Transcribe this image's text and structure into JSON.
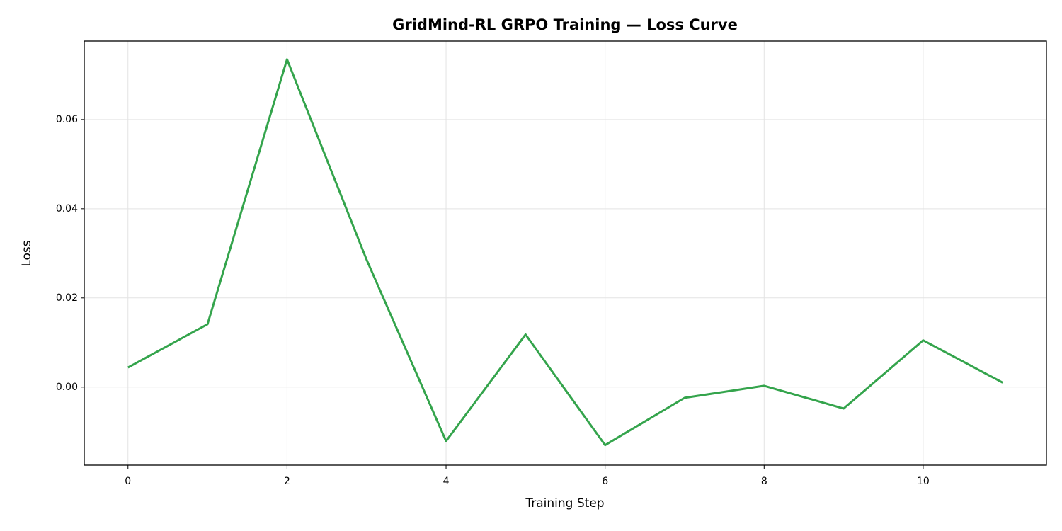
{
  "chart_data": {
    "type": "line",
    "title": "GridMind-RL GRPO Training — Loss Curve",
    "x_label": "Training Step",
    "y_label": "Loss",
    "x": [
      0,
      1,
      2,
      3,
      4,
      5,
      6,
      7,
      8,
      9,
      10,
      11
    ],
    "series": [
      {
        "name": "Loss",
        "color": "#34a44c",
        "values": [
          0.0044,
          0.0141,
          0.0735,
          0.0286,
          -0.0121,
          0.0118,
          -0.013,
          -0.0024,
          0.0003,
          -0.0048,
          0.0105,
          0.001
        ]
      }
    ],
    "xlim": [
      -0.55,
      11.55
    ],
    "xticks": [
      0,
      2,
      4,
      6,
      8,
      10
    ],
    "ylim": [
      -0.0175,
      0.0776
    ],
    "yticks": [
      {
        "value": 0,
        "label": "0.00"
      },
      {
        "value": 0.02,
        "label": "0.02"
      },
      {
        "value": 0.04,
        "label": "0.04"
      },
      {
        "value": 0.06,
        "label": "0.06"
      }
    ],
    "grid": true
  }
}
